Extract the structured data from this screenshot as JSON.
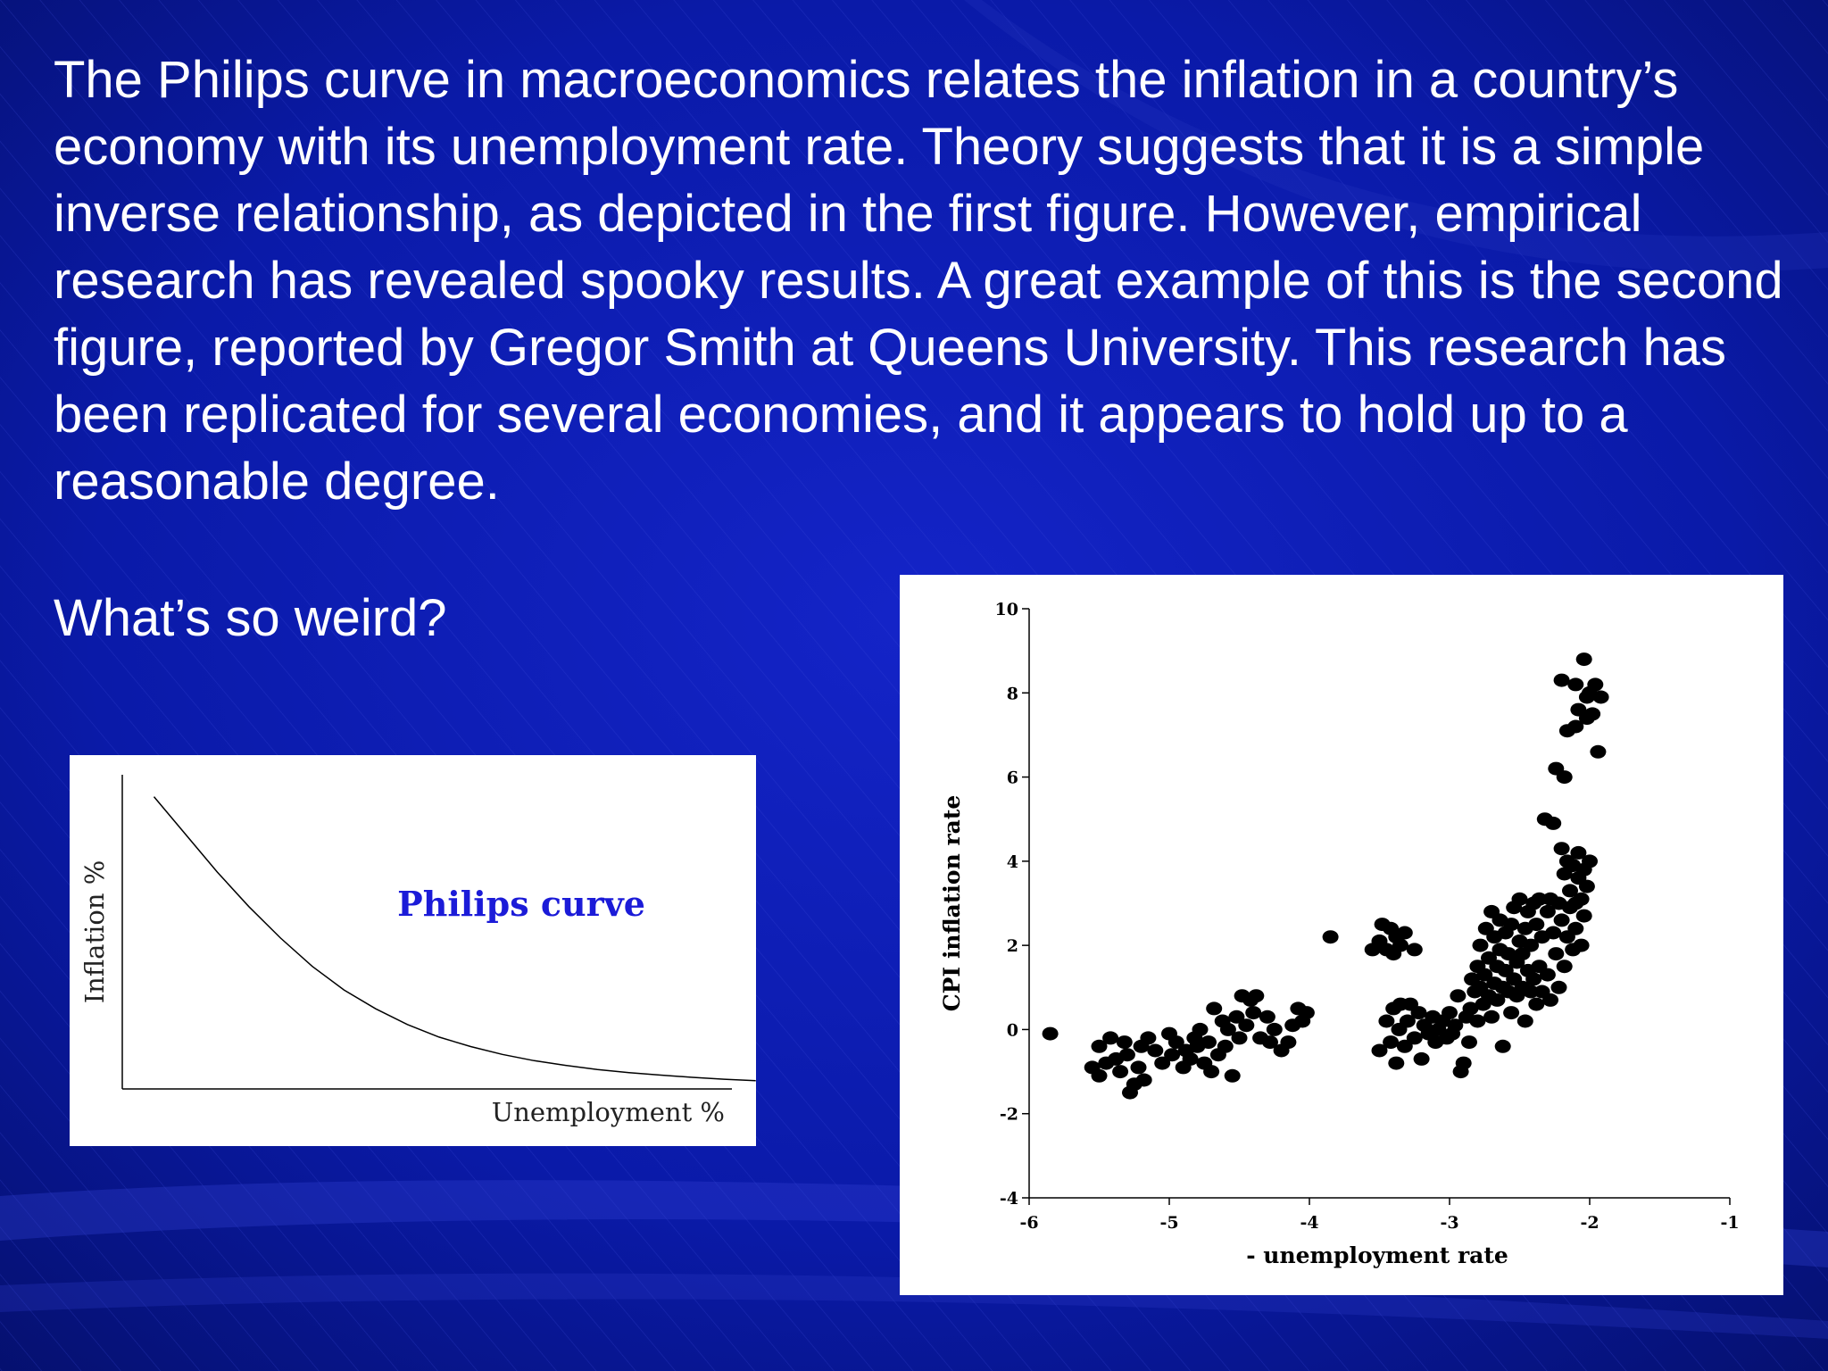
{
  "slide": {
    "paragraph": "The Philips curve in macroeconomics relates the inflation  in a country’s economy with its unemployment rate. Theory suggests that it is a simple inverse relationship, as depicted in the first figure. However, empirical research has revealed spooky results. A great example of this is the second figure, reported by Gregor Smith at Queens University. This research has been replicated for several economies, and it appears to hold up to a reasonable degree.",
    "question": "What’s so weird?",
    "colors": {
      "background": "#0a1aa8",
      "text": "#ffffff",
      "curve_title": "#1b1bd8"
    }
  },
  "chart_data": [
    {
      "type": "line",
      "title": "Philips curve",
      "xlabel": "Unemployment %",
      "ylabel": "Inflation %",
      "ticks": "none",
      "x": [
        0.5,
        1,
        1.5,
        2,
        2.5,
        3,
        3.5,
        4,
        4.5,
        5,
        5.5,
        6,
        6.5,
        7,
        7.5,
        8,
        8.5,
        9,
        9.5,
        10
      ],
      "y": [
        9.3,
        8.1,
        6.9,
        5.8,
        4.8,
        3.9,
        3.15,
        2.55,
        2.05,
        1.65,
        1.35,
        1.1,
        0.9,
        0.75,
        0.62,
        0.52,
        0.44,
        0.37,
        0.31,
        0.26
      ],
      "xlim": [
        0,
        10.3
      ],
      "ylim": [
        0,
        10
      ]
    },
    {
      "type": "scatter",
      "title": "",
      "xlabel": "- unemployment rate",
      "ylabel": "CPI inflation rate",
      "xlim": [
        -6,
        -1
      ],
      "ylim": [
        -4,
        10
      ],
      "xticks": [
        "-6",
        "-5",
        "-4",
        "-3",
        "-2",
        "-1"
      ],
      "yticks": [
        "-4",
        "-2",
        "0",
        "2",
        "4",
        "6",
        "8",
        "10"
      ],
      "grid": false,
      "points": [
        [
          -5.85,
          -0.1
        ],
        [
          -5.55,
          -0.9
        ],
        [
          -5.5,
          -0.4
        ],
        [
          -5.5,
          -1.1
        ],
        [
          -5.45,
          -0.8
        ],
        [
          -5.42,
          -0.2
        ],
        [
          -5.38,
          -0.7
        ],
        [
          -5.35,
          -1.0
        ],
        [
          -5.32,
          -0.3
        ],
        [
          -5.3,
          -0.6
        ],
        [
          -5.28,
          -1.5
        ],
        [
          -5.25,
          -1.3
        ],
        [
          -5.22,
          -0.9
        ],
        [
          -5.2,
          -0.4
        ],
        [
          -5.18,
          -1.2
        ],
        [
          -5.15,
          -0.2
        ],
        [
          -5.1,
          -0.5
        ],
        [
          -5.05,
          -0.8
        ],
        [
          -5.0,
          -0.1
        ],
        [
          -4.98,
          -0.6
        ],
        [
          -4.95,
          -0.3
        ],
        [
          -4.9,
          -0.9
        ],
        [
          -4.88,
          -0.5
        ],
        [
          -4.85,
          -0.7
        ],
        [
          -4.82,
          -0.2
        ],
        [
          -4.8,
          -0.4
        ],
        [
          -4.78,
          0.0
        ],
        [
          -4.75,
          -0.8
        ],
        [
          -4.72,
          -0.3
        ],
        [
          -4.7,
          -1.0
        ],
        [
          -4.68,
          0.5
        ],
        [
          -4.65,
          -0.6
        ],
        [
          -4.62,
          0.2
        ],
        [
          -4.6,
          -0.4
        ],
        [
          -4.58,
          0.0
        ],
        [
          -4.55,
          -1.1
        ],
        [
          -4.52,
          0.3
        ],
        [
          -4.5,
          -0.2
        ],
        [
          -4.48,
          0.8
        ],
        [
          -4.45,
          0.1
        ],
        [
          -4.42,
          0.7
        ],
        [
          -4.4,
          0.4
        ],
        [
          -4.38,
          0.8
        ],
        [
          -4.35,
          -0.2
        ],
        [
          -4.3,
          0.3
        ],
        [
          -4.28,
          -0.3
        ],
        [
          -4.25,
          0.0
        ],
        [
          -4.2,
          -0.5
        ],
        [
          -4.15,
          -0.3
        ],
        [
          -4.12,
          0.1
        ],
        [
          -4.08,
          0.5
        ],
        [
          -4.05,
          0.2
        ],
        [
          -4.02,
          0.4
        ],
        [
          -3.85,
          2.2
        ],
        [
          -3.55,
          1.9
        ],
        [
          -3.5,
          2.1
        ],
        [
          -3.48,
          2.5
        ],
        [
          -3.45,
          1.9
        ],
        [
          -3.42,
          2.4
        ],
        [
          -3.4,
          1.8
        ],
        [
          -3.38,
          2.2
        ],
        [
          -3.35,
          2.0
        ],
        [
          -3.32,
          2.3
        ],
        [
          -3.25,
          1.9
        ],
        [
          -3.5,
          -0.5
        ],
        [
          -3.45,
          0.2
        ],
        [
          -3.42,
          -0.3
        ],
        [
          -3.4,
          0.5
        ],
        [
          -3.38,
          -0.8
        ],
        [
          -3.36,
          0.0
        ],
        [
          -3.35,
          0.6
        ],
        [
          -3.32,
          -0.4
        ],
        [
          -3.3,
          0.2
        ],
        [
          -3.28,
          0.6
        ],
        [
          -3.25,
          -0.2
        ],
        [
          -3.22,
          0.4
        ],
        [
          -3.2,
          -0.7
        ],
        [
          -3.18,
          0.1
        ],
        [
          -3.15,
          -0.1
        ],
        [
          -3.12,
          0.3
        ],
        [
          -3.1,
          -0.3
        ],
        [
          -3.08,
          0.0
        ],
        [
          -3.05,
          0.2
        ],
        [
          -3.02,
          -0.2
        ],
        [
          -3.0,
          0.4
        ],
        [
          -2.98,
          -0.1
        ],
        [
          -2.96,
          0.1
        ],
        [
          -2.94,
          0.8
        ],
        [
          -2.92,
          -1.0
        ],
        [
          -2.9,
          -0.8
        ],
        [
          -2.88,
          0.3
        ],
        [
          -2.86,
          -0.3
        ],
        [
          -2.85,
          0.5
        ],
        [
          -2.84,
          1.2
        ],
        [
          -2.82,
          0.9
        ],
        [
          -2.8,
          1.5
        ],
        [
          -2.8,
          0.2
        ],
        [
          -2.78,
          1.0
        ],
        [
          -2.78,
          2.0
        ],
        [
          -2.76,
          0.6
        ],
        [
          -2.75,
          1.3
        ],
        [
          -2.74,
          2.4
        ],
        [
          -2.72,
          0.8
        ],
        [
          -2.72,
          1.7
        ],
        [
          -2.7,
          0.3
        ],
        [
          -2.7,
          2.8
        ],
        [
          -2.68,
          1.1
        ],
        [
          -2.68,
          2.2
        ],
        [
          -2.66,
          0.7
        ],
        [
          -2.66,
          1.5
        ],
        [
          -2.64,
          1.9
        ],
        [
          -2.64,
          2.6
        ],
        [
          -2.62,
          1.0
        ],
        [
          -2.62,
          -0.4
        ],
        [
          -2.6,
          1.4
        ],
        [
          -2.6,
          2.3
        ],
        [
          -2.58,
          0.9
        ],
        [
          -2.58,
          1.8
        ],
        [
          -2.56,
          2.5
        ],
        [
          -2.56,
          0.4
        ],
        [
          -2.54,
          1.2
        ],
        [
          -2.54,
          2.9
        ],
        [
          -2.52,
          1.6
        ],
        [
          -2.52,
          0.8
        ],
        [
          -2.5,
          2.1
        ],
        [
          -2.5,
          3.1
        ],
        [
          -2.48,
          1.0
        ],
        [
          -2.48,
          1.8
        ],
        [
          -2.46,
          2.4
        ],
        [
          -2.46,
          0.2
        ],
        [
          -2.44,
          1.4
        ],
        [
          -2.44,
          2.8
        ],
        [
          -2.42,
          0.9
        ],
        [
          -2.42,
          2.0
        ],
        [
          -2.4,
          3.0
        ],
        [
          -2.4,
          1.2
        ],
        [
          -2.38,
          0.6
        ],
        [
          -2.38,
          2.5
        ],
        [
          -2.36,
          3.1
        ],
        [
          -2.36,
          1.5
        ],
        [
          -2.34,
          2.2
        ],
        [
          -2.34,
          0.9
        ],
        [
          -2.32,
          5.0
        ],
        [
          -2.3,
          2.8
        ],
        [
          -2.3,
          1.3
        ],
        [
          -2.28,
          3.1
        ],
        [
          -2.28,
          0.7
        ],
        [
          -2.26,
          4.9
        ],
        [
          -2.26,
          2.3
        ],
        [
          -2.24,
          6.2
        ],
        [
          -2.24,
          1.8
        ],
        [
          -2.22,
          3.0
        ],
        [
          -2.22,
          1.0
        ],
        [
          -2.2,
          8.3
        ],
        [
          -2.2,
          4.3
        ],
        [
          -2.2,
          2.6
        ],
        [
          -2.18,
          6.0
        ],
        [
          -2.18,
          3.7
        ],
        [
          -2.18,
          1.5
        ],
        [
          -2.16,
          7.1
        ],
        [
          -2.16,
          4.0
        ],
        [
          -2.16,
          2.2
        ],
        [
          -2.14,
          3.3
        ],
        [
          -2.14,
          2.9
        ],
        [
          -2.12,
          3.9
        ],
        [
          -2.12,
          1.9
        ],
        [
          -2.1,
          8.2
        ],
        [
          -2.1,
          7.2
        ],
        [
          -2.1,
          3.0
        ],
        [
          -2.1,
          2.4
        ],
        [
          -2.08,
          7.6
        ],
        [
          -2.08,
          4.2
        ],
        [
          -2.08,
          3.6
        ],
        [
          -2.06,
          3.1
        ],
        [
          -2.06,
          2.0
        ],
        [
          -2.04,
          8.8
        ],
        [
          -2.04,
          3.8
        ],
        [
          -2.04,
          2.7
        ],
        [
          -2.02,
          7.9
        ],
        [
          -2.02,
          7.4
        ],
        [
          -2.02,
          3.4
        ],
        [
          -2.0,
          8.0
        ],
        [
          -2.0,
          4.0
        ],
        [
          -1.98,
          7.5
        ],
        [
          -1.96,
          8.2
        ],
        [
          -1.94,
          6.6
        ],
        [
          -1.92,
          7.9
        ]
      ]
    }
  ]
}
